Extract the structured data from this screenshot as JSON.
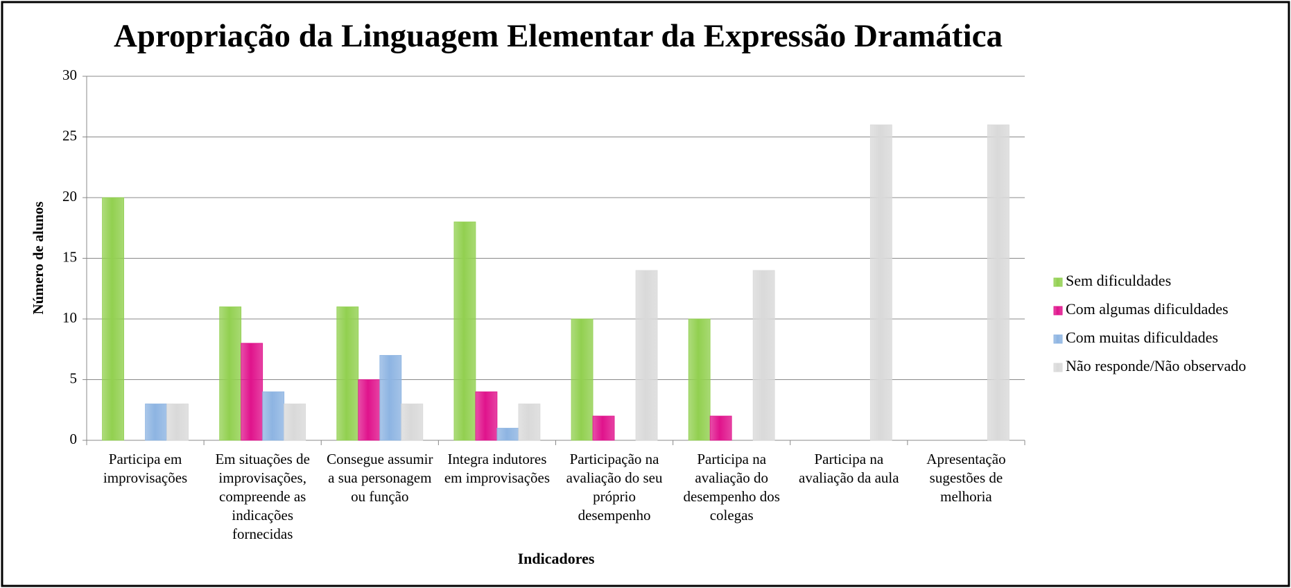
{
  "chart_data": {
    "type": "bar",
    "title": "Apropriação da Linguagem Elementar da Expressão Dramática",
    "xlabel": "Indicadores",
    "ylabel": "Número de alunos",
    "categories": [
      "Participa em improvisações",
      "Em situações de improvisações, compreende as indicações fornecidas",
      "Consegue assumir a sua personagem ou função",
      "Integra indutores em improvisações",
      "Participação na avaliação do seu próprio desempenho",
      "Participa na avaliação do desempenho dos colegas",
      "Participa na avaliação da aula",
      "Apresentação sugestões de melhoria"
    ],
    "series": [
      {
        "name": "Sem dificuldades",
        "color": "#92d050",
        "values": [
          20,
          11,
          11,
          18,
          10,
          10,
          0,
          0
        ]
      },
      {
        "name": "Com algumas dificuldades",
        "color": "#e0138c",
        "values": [
          0,
          8,
          5,
          4,
          2,
          2,
          0,
          0
        ]
      },
      {
        "name": "Com muitas dificuldades",
        "color": "#8db4e2",
        "values": [
          3,
          4,
          7,
          1,
          0,
          0,
          0,
          0
        ]
      },
      {
        "name": "Não responde/Não observado",
        "color": "#d9d9d9",
        "values": [
          3,
          3,
          3,
          3,
          14,
          14,
          26,
          26
        ]
      }
    ],
    "ylim": [
      0,
      30
    ],
    "yticks": [
      0,
      5,
      10,
      15,
      20,
      25,
      30
    ],
    "grid": true,
    "legend": "right"
  }
}
